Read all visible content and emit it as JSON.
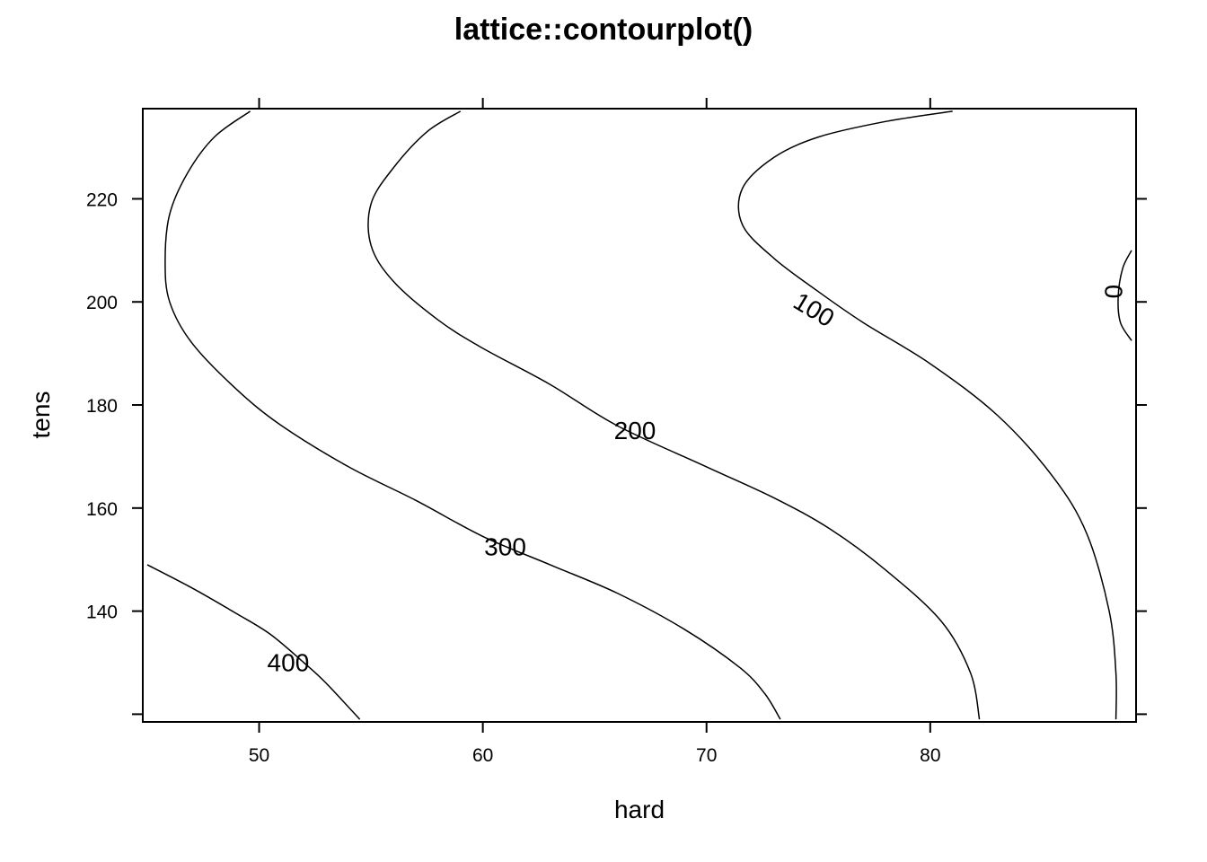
{
  "chart_data": {
    "type": "contour",
    "title": "lattice::contourplot()",
    "xlabel": "hard",
    "ylabel": "tens",
    "xlim": [
      44.8,
      89.2
    ],
    "ylim": [
      118.5,
      237.5
    ],
    "xticks": [
      50,
      60,
      70,
      80
    ],
    "yticks": [
      120,
      140,
      160,
      180,
      200,
      220
    ],
    "xtick_labels": [
      "50",
      "60",
      "70",
      "80"
    ],
    "ytick_labels": [
      "",
      "140",
      "160",
      "180",
      "200",
      "220"
    ],
    "contours": [
      {
        "level": 400,
        "label": "400",
        "label_pos": [
          51.3,
          130.0
        ],
        "label_angle": 0,
        "points": [
          [
            45.0,
            149.0
          ],
          [
            47.0,
            144.5
          ],
          [
            49.0,
            139.5
          ],
          [
            50.5,
            135.5
          ],
          [
            52.0,
            130.0
          ],
          [
            53.0,
            126.0
          ],
          [
            54.5,
            119.0
          ]
        ]
      },
      {
        "level": 300,
        "label": "300",
        "label_pos": [
          61.0,
          152.5
        ],
        "label_angle": 0,
        "points": [
          [
            49.6,
            237.0
          ],
          [
            48.0,
            232.0
          ],
          [
            46.8,
            225.0
          ],
          [
            46.0,
            217.0
          ],
          [
            45.8,
            208.0
          ],
          [
            46.0,
            200.0
          ],
          [
            47.0,
            192.0
          ],
          [
            49.0,
            183.0
          ],
          [
            51.0,
            176.0
          ],
          [
            54.0,
            168.0
          ],
          [
            57.0,
            161.5
          ],
          [
            60.0,
            154.5
          ],
          [
            63.0,
            149.0
          ],
          [
            66.0,
            143.5
          ],
          [
            69.0,
            136.5
          ],
          [
            71.5,
            129.0
          ],
          [
            72.6,
            124.0
          ],
          [
            73.3,
            119.0
          ]
        ]
      },
      {
        "level": 200,
        "label": "200",
        "label_pos": [
          66.8,
          175.0
        ],
        "label_angle": 0,
        "points": [
          [
            59.0,
            237.0
          ],
          [
            57.5,
            233.0
          ],
          [
            56.0,
            226.0
          ],
          [
            55.0,
            219.0
          ],
          [
            55.0,
            211.0
          ],
          [
            56.0,
            204.0
          ],
          [
            58.0,
            196.5
          ],
          [
            60.0,
            191.0
          ],
          [
            63.0,
            184.0
          ],
          [
            66.0,
            176.0
          ],
          [
            70.0,
            168.0
          ],
          [
            73.0,
            162.0
          ],
          [
            75.5,
            156.0
          ],
          [
            78.0,
            148.0
          ],
          [
            80.5,
            138.0
          ],
          [
            81.8,
            128.0
          ],
          [
            82.2,
            119.0
          ]
        ]
      },
      {
        "level": 100,
        "label": "100",
        "label_pos": [
          74.8,
          198.5
        ],
        "label_angle": 31,
        "points": [
          [
            81.0,
            237.0
          ],
          [
            78.0,
            235.0
          ],
          [
            75.0,
            232.0
          ],
          [
            73.0,
            228.0
          ],
          [
            71.6,
            222.0
          ],
          [
            71.6,
            215.0
          ],
          [
            73.0,
            208.5
          ],
          [
            75.0,
            202.0
          ],
          [
            77.0,
            196.0
          ],
          [
            80.0,
            188.0
          ],
          [
            83.0,
            178.0
          ],
          [
            85.5,
            166.0
          ],
          [
            87.0,
            155.0
          ],
          [
            88.0,
            140.0
          ],
          [
            88.3,
            128.0
          ],
          [
            88.3,
            119.0
          ]
        ]
      },
      {
        "level": 0,
        "label": "0",
        "label_pos": [
          88.2,
          202.0
        ],
        "label_angle": -90,
        "points": [
          [
            89.0,
            210.0
          ],
          [
            88.6,
            206.5
          ],
          [
            88.4,
            201.0
          ],
          [
            88.5,
            196.0
          ],
          [
            89.0,
            192.5
          ]
        ]
      }
    ]
  }
}
